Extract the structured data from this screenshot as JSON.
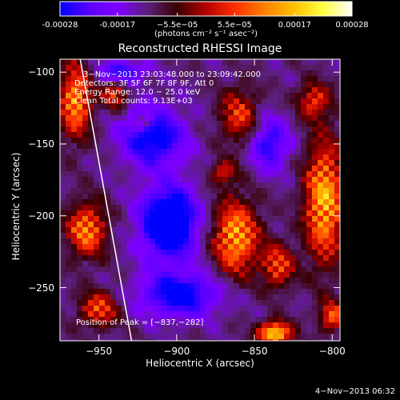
{
  "colorbar": {
    "colors": [
      "#0000ff",
      "#5a00ff",
      "#7f00ff",
      "#5a2078",
      "#3a0000",
      "#b40000",
      "#ff3000",
      "#ff8000",
      "#ffc000",
      "#ffff40",
      "#ffffff"
    ],
    "ticks": [
      "-0.00028",
      "-0.00017",
      "−5.5e−05",
      "5.5e−05",
      "0.00017",
      "0.00028"
    ],
    "tick_values": [
      -0.00028,
      -0.00017,
      -5.5e-05,
      5.5e-05,
      0.00017,
      0.00028
    ],
    "range": [
      -0.00028,
      0.00028
    ],
    "units": "(photons cm⁻² s⁻¹ asec⁻²)"
  },
  "chart_data": {
    "type": "heatmap",
    "title": "Reconstructed RHESSI Image",
    "xlabel": "Heliocentric X (arcsec)",
    "ylabel": "Heliocentric Y (arcsec)",
    "xlim": [
      -975,
      -795
    ],
    "ylim": [
      -287,
      -91
    ],
    "x_ticks": [
      -950,
      -900,
      -850,
      -800
    ],
    "y_ticks": [
      -100,
      -150,
      -200,
      -250
    ],
    "y_tick_labels": [
      "−100",
      "−150",
      "−200",
      "−250"
    ],
    "x_tick_labels": [
      "−950",
      "−900",
      "−850",
      "−800"
    ],
    "annotations": [
      "3−Nov−2013 23:03:48.000 to 23:09:42.000",
      "Detectors: 3F 5F 6F 7F 8F 9F, Att 0",
      "Energy Range: 12.0 − 25.0 keV",
      "Clean    Total counts: 9.13E+03"
    ],
    "peak_label": "Position of Peak = [−837,−282]",
    "peak": [
      -837,
      -282
    ],
    "limb_line": [
      [
        -962,
        -91
      ],
      [
        -929,
        -287
      ]
    ],
    "hot_regions": [
      {
        "x": -965,
        "y": -120,
        "sx": 10,
        "sy": 25,
        "v": 0.75
      },
      {
        "x": -958,
        "y": -210,
        "sx": 12,
        "sy": 18,
        "v": 0.7
      },
      {
        "x": -950,
        "y": -265,
        "sx": 12,
        "sy": 12,
        "v": 0.55
      },
      {
        "x": -940,
        "y": -115,
        "sx": 8,
        "sy": 10,
        "v": 0.5
      },
      {
        "x": -920,
        "y": -135,
        "sx": 6,
        "sy": 6,
        "v": 0.35
      },
      {
        "x": -860,
        "y": -130,
        "sx": 12,
        "sy": 18,
        "v": 0.5
      },
      {
        "x": -862,
        "y": -215,
        "sx": 14,
        "sy": 25,
        "v": 0.8
      },
      {
        "x": -870,
        "y": -170,
        "sx": 8,
        "sy": 8,
        "v": 0.45
      },
      {
        "x": -835,
        "y": -235,
        "sx": 10,
        "sy": 15,
        "v": 0.55
      },
      {
        "x": -805,
        "y": -190,
        "sx": 12,
        "sy": 40,
        "v": 0.85
      },
      {
        "x": -812,
        "y": -120,
        "sx": 10,
        "sy": 12,
        "v": 0.5
      },
      {
        "x": -837,
        "y": -282,
        "sx": 10,
        "sy": 8,
        "v": 1.0
      },
      {
        "x": -800,
        "y": -270,
        "sx": 8,
        "sy": 10,
        "v": 0.6
      }
    ],
    "cold_regions": [
      {
        "x": -905,
        "y": -205,
        "sx": 18,
        "sy": 25,
        "v": 0.7
      },
      {
        "x": -915,
        "y": -145,
        "sx": 20,
        "sy": 20,
        "v": 0.5
      },
      {
        "x": -898,
        "y": -255,
        "sx": 25,
        "sy": 15,
        "v": 0.5
      },
      {
        "x": -840,
        "y": -150,
        "sx": 12,
        "sy": 18,
        "v": 0.4
      },
      {
        "x": -935,
        "y": -100,
        "sx": 15,
        "sy": 8,
        "v": 0.4
      }
    ]
  },
  "footer": {
    "timestamp": "4−Nov−2013 06:32"
  }
}
